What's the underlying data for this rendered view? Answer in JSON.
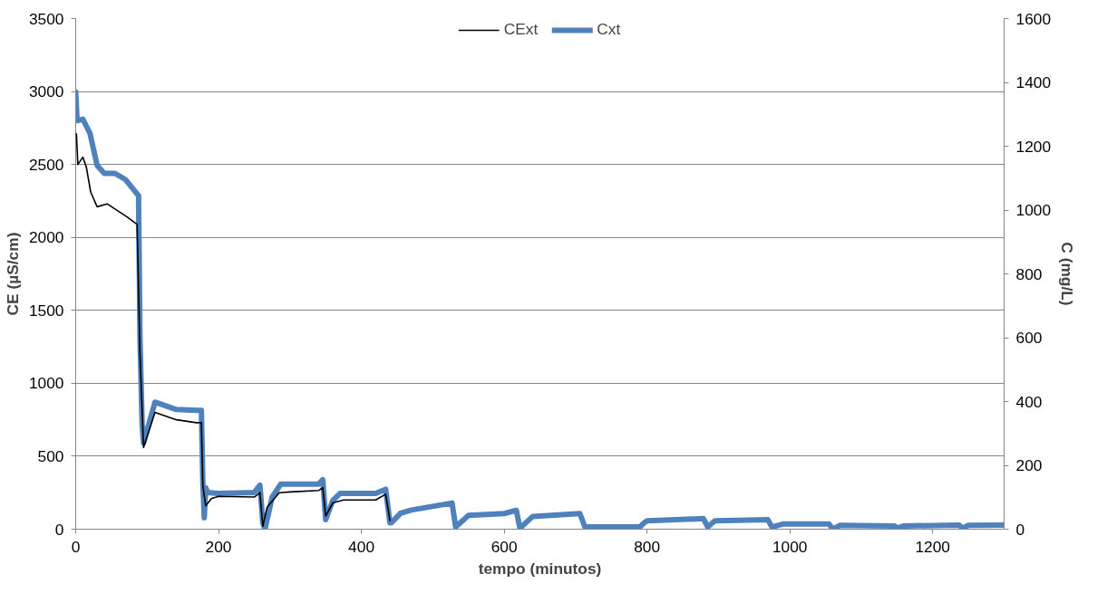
{
  "chart_data": {
    "type": "line",
    "xlabel": "tempo (minutos)",
    "ylabel": "CE (µS/cm)",
    "y2label": "C (mg/L)",
    "xlim": [
      0,
      1300
    ],
    "xticks": [
      0,
      200,
      400,
      600,
      800,
      1000,
      1200
    ],
    "ylim": [
      0,
      3500
    ],
    "yticks": [
      0,
      500,
      1000,
      1500,
      2000,
      2500,
      3000,
      3500
    ],
    "y2lim": [
      0,
      1600
    ],
    "y2ticks": [
      0,
      200,
      400,
      600,
      800,
      1000,
      1200,
      1400,
      1600
    ],
    "grid": "y",
    "legend": "top",
    "marker": "none",
    "line_style": "solid",
    "series": [
      {
        "name": "CExt",
        "color": "#000000",
        "x": [
          1,
          3,
          10,
          15,
          21,
          30,
          44,
          72,
          83,
          86,
          90,
          95,
          111,
          141,
          169,
          176,
          178,
          182,
          190,
          200,
          250,
          258,
          262,
          268,
          285,
          300,
          340,
          346,
          350,
          360,
          375,
          420,
          434,
          440
        ],
        "values": [
          2710,
          2500,
          2550,
          2480,
          2310,
          2210,
          2230,
          2140,
          2100,
          2090,
          1200,
          560,
          800,
          750,
          730,
          730,
          300,
          160,
          210,
          225,
          220,
          250,
          20,
          150,
          250,
          255,
          265,
          285,
          90,
          180,
          200,
          200,
          240,
          60
        ]
      },
      {
        "name": "Cxt",
        "color": "#4f81bd",
        "axis": "y2",
        "x": [
          0,
          2,
          10,
          20,
          30,
          40,
          55,
          70,
          88,
          90,
          93,
          95,
          111,
          141,
          169,
          176,
          178,
          180,
          182,
          185,
          200,
          250,
          258,
          262,
          265,
          275,
          287,
          340,
          346,
          350,
          360,
          370,
          420,
          434,
          440,
          442,
          455,
          470,
          527,
          532,
          550,
          600,
          617,
          622,
          640,
          706,
          713,
          790,
          796,
          800,
          879,
          885,
          895,
          969,
          975,
          990,
          1055,
          1060,
          1070,
          1147,
          1150,
          1160,
          1237,
          1242,
          1250,
          1300
        ],
        "values": [
          1370,
          1280,
          1285,
          1240,
          1140,
          1115,
          1115,
          1095,
          1045,
          600,
          330,
          270,
          398,
          375,
          372,
          372,
          150,
          36,
          130,
          115,
          112,
          115,
          138,
          20,
          0,
          100,
          141,
          141,
          155,
          30,
          90,
          112,
          112,
          125,
          20,
          20,
          50,
          60,
          82,
          7,
          43,
          49,
          59,
          3,
          40,
          49,
          7,
          7,
          20,
          26,
          33,
          7,
          26,
          30,
          7,
          16,
          16,
          0,
          12,
          10,
          3,
          10,
          13,
          3,
          12,
          13
        ]
      }
    ]
  }
}
